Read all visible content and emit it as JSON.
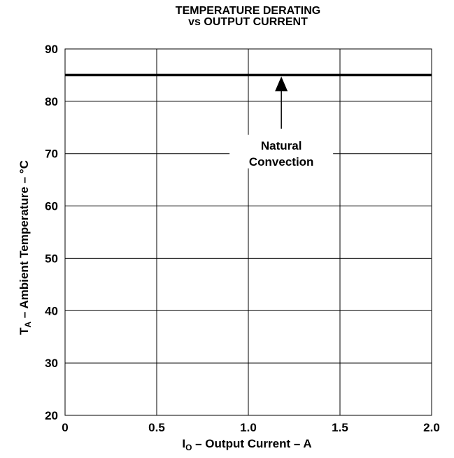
{
  "chart_data": {
    "type": "line",
    "title": "TEMPERATURE DERATING",
    "subtitle": "vs OUTPUT CURRENT",
    "xlabel": {
      "prefix": "I",
      "sub": "O",
      "suffix": " – Output Current – A"
    },
    "ylabel": {
      "prefix": "T",
      "sub": "A",
      "suffix": " – Ambient Temperature  – °C"
    },
    "xlim": [
      0,
      2.0
    ],
    "ylim": [
      20,
      90
    ],
    "xticks": [
      "0",
      "0.5",
      "1.0",
      "1.5",
      "2.0"
    ],
    "xtick_values": [
      0,
      0.5,
      1.0,
      1.5,
      2.0
    ],
    "yticks": [
      "20",
      "30",
      "40",
      "50",
      "60",
      "70",
      "80",
      "90"
    ],
    "ytick_values": [
      20,
      30,
      40,
      50,
      60,
      70,
      80,
      90
    ],
    "grid": true,
    "series": [
      {
        "x": [
          0,
          2.0
        ],
        "y": [
          85,
          85
        ],
        "color": "#000000"
      }
    ],
    "annotation": {
      "lines": [
        "Natural",
        "Convection"
      ],
      "arrow_to": {
        "x": 1.18,
        "y": 85
      }
    }
  }
}
